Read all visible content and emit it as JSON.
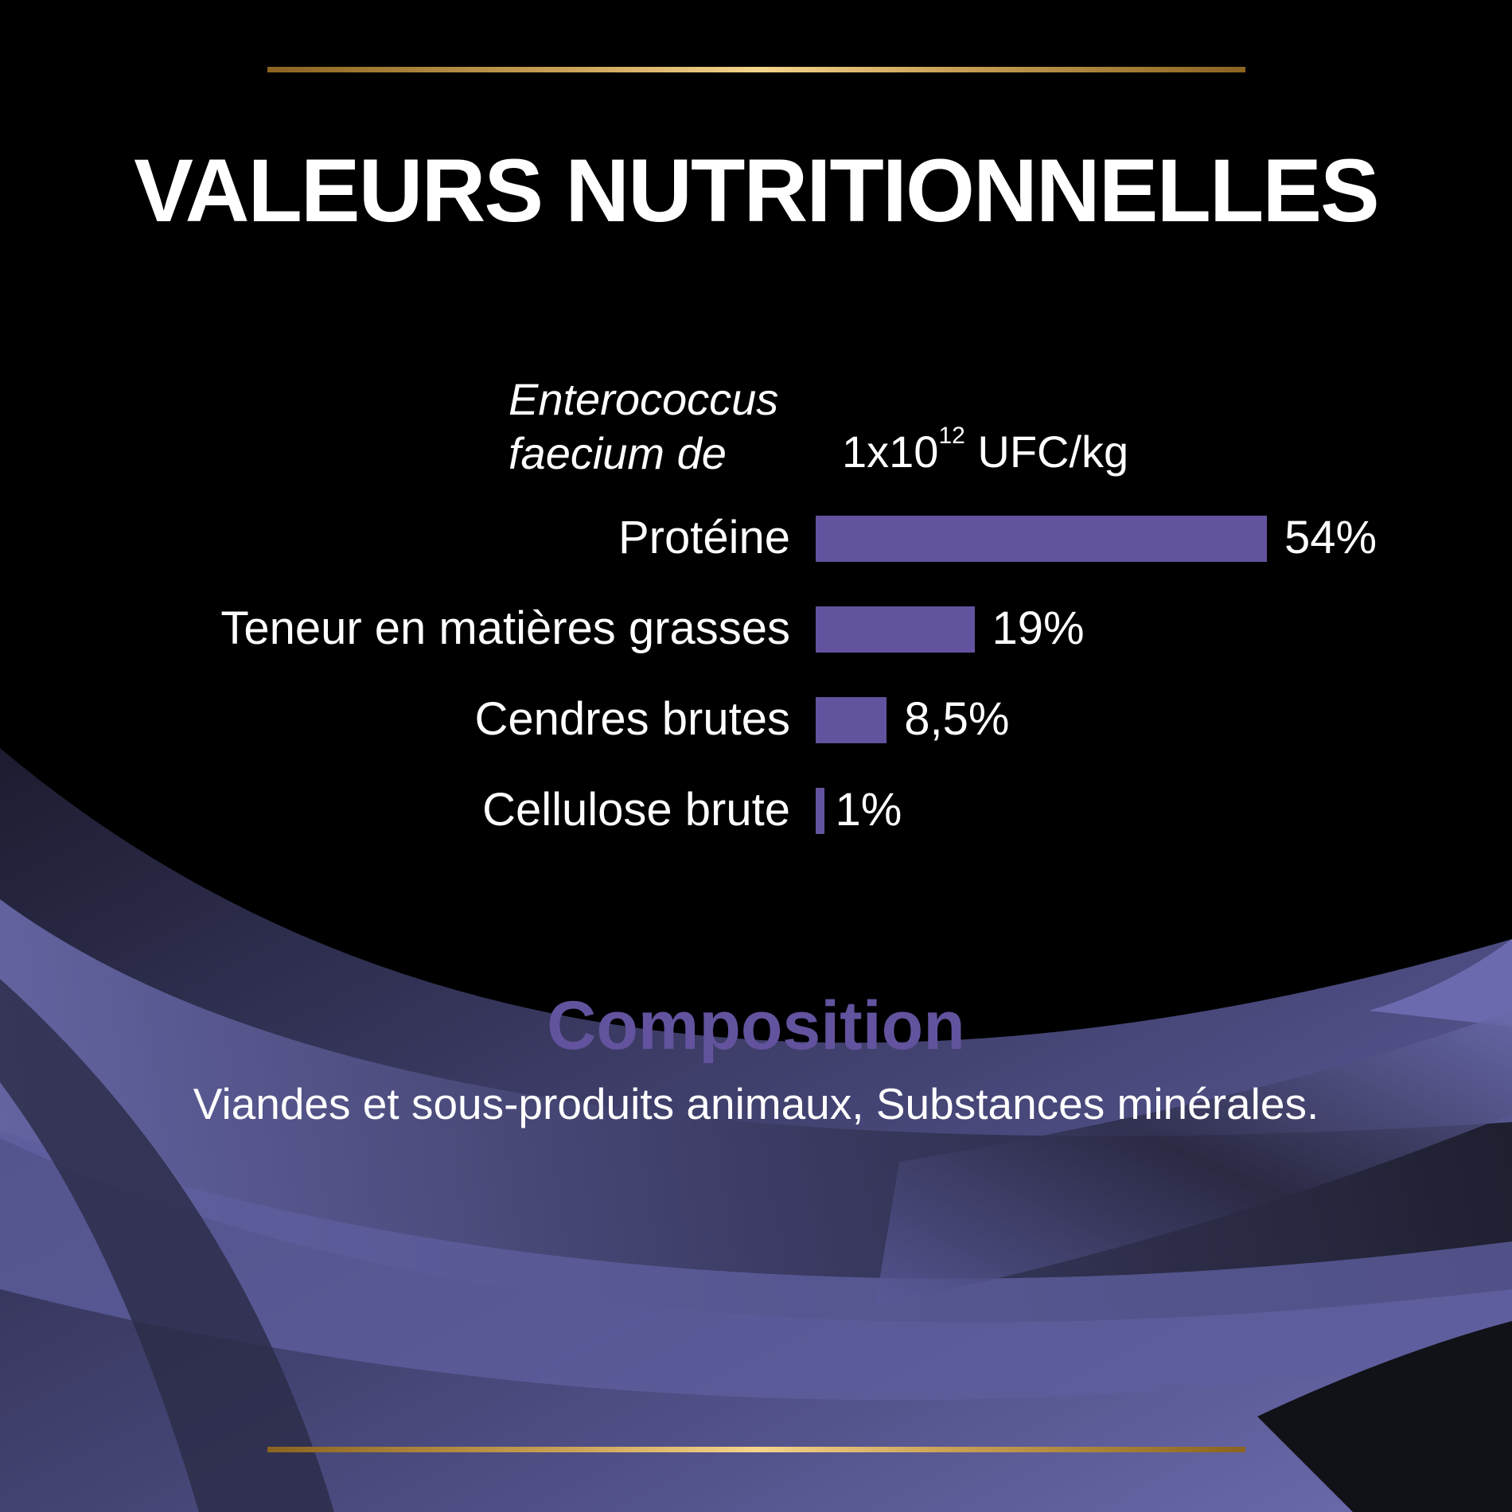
{
  "title": "VALEURS NUTRITIONNELLES",
  "probiotic": {
    "name_line1": "Enterococcus",
    "name_line2": "faecium de",
    "value_base": "1x10",
    "value_exponent": "12",
    "value_unit": " UFC/kg"
  },
  "chart_data": {
    "type": "bar",
    "orientation": "horizontal",
    "categories": [
      "Protéine",
      "Teneur en matières grasses",
      "Cendres brutes",
      "Cellulose brute"
    ],
    "values": [
      54,
      19,
      8.5,
      1
    ],
    "value_labels": [
      "54%",
      "19%",
      "8,5%",
      "1%"
    ],
    "unit": "%",
    "bar_color": "#63539e",
    "grid": false
  },
  "composition": {
    "title": "Composition",
    "text": "Viandes et sous-produits animaux, Substances minérales."
  },
  "colors": {
    "accent": "#63539e",
    "gold": "#d9b46a",
    "background": "#000000",
    "ribbon": "#6b6aae"
  }
}
